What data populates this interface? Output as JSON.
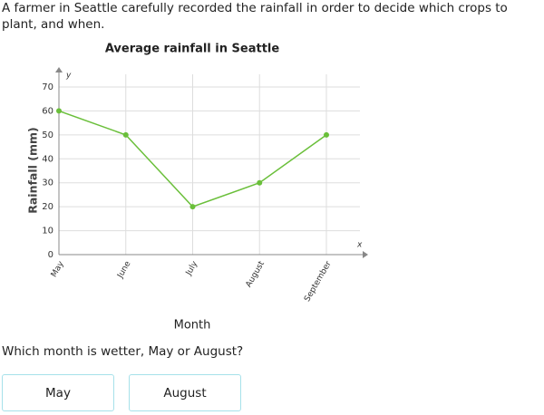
{
  "intro": "A farmer in Seattle carefully recorded the rainfall in order to decide which crops to plant, and when.",
  "chart_data": {
    "type": "line",
    "title": "Average rainfall in Seattle",
    "x_label": "Month",
    "y_label": "Rainfall (mm)",
    "x_axis_symbol": "x",
    "y_axis_symbol": "y",
    "categories": [
      "May",
      "June",
      "July",
      "August",
      "September"
    ],
    "series": [
      {
        "name": "Rainfall",
        "color": "#6abf3a",
        "values": [
          60,
          50,
          20,
          30,
          50
        ]
      }
    ],
    "ylim": [
      0,
      70
    ],
    "yticks": [
      0,
      10,
      20,
      30,
      40,
      50,
      60,
      70
    ],
    "grid": true
  },
  "question": "Which month is wetter, May or August?",
  "choices": [
    "May",
    "August"
  ]
}
